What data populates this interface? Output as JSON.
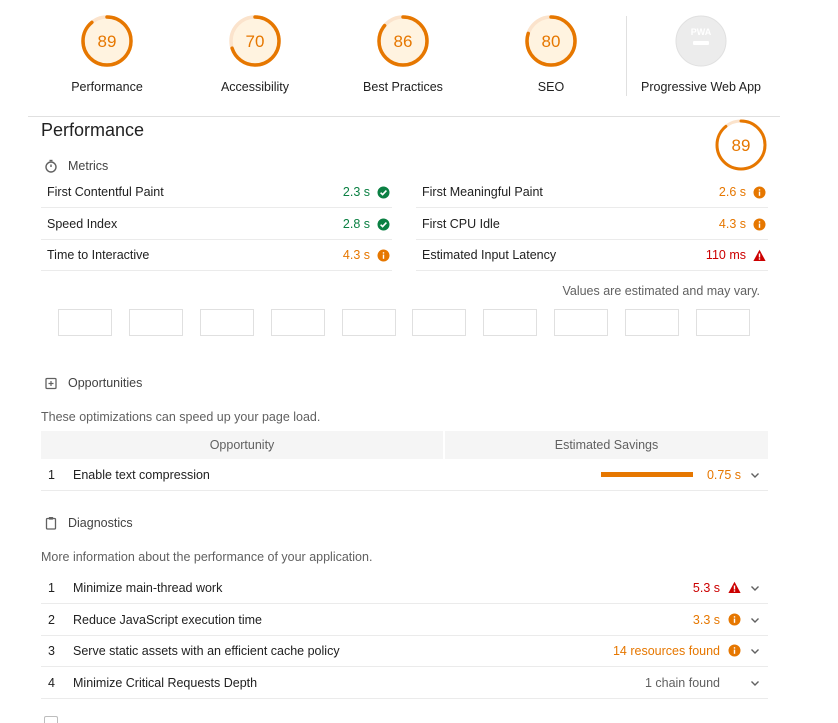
{
  "top_gauges": [
    {
      "score": "89",
      "label": "Performance",
      "fraction": 0.89
    },
    {
      "score": "70",
      "label": "Accessibility",
      "fraction": 0.7
    },
    {
      "score": "86",
      "label": "Best Practices",
      "fraction": 0.86
    },
    {
      "score": "80",
      "label": "SEO",
      "fraction": 0.8
    }
  ],
  "pwa": {
    "badge": "PWA",
    "label": "Progressive Web App"
  },
  "performance": {
    "title": "Performance",
    "score": "89",
    "score_fraction": 0.89
  },
  "metrics": {
    "header": "Metrics",
    "items": [
      {
        "label": "First Contentful Paint",
        "value": "2.3 s",
        "status": "pass"
      },
      {
        "label": "First Meaningful Paint",
        "value": "2.6 s",
        "status": "average"
      },
      {
        "label": "Speed Index",
        "value": "2.8 s",
        "status": "pass"
      },
      {
        "label": "First CPU Idle",
        "value": "4.3 s",
        "status": "average"
      },
      {
        "label": "Time to Interactive",
        "value": "4.3 s",
        "status": "average"
      },
      {
        "label": "Estimated Input Latency",
        "value": "110 ms",
        "status": "fail"
      }
    ],
    "note": "Values are estimated and may vary."
  },
  "opportunities": {
    "header": "Opportunities",
    "description": "These optimizations can speed up your page load.",
    "col_opportunity": "Opportunity",
    "col_savings": "Estimated Savings",
    "items": [
      {
        "num": "1",
        "title": "Enable text compression",
        "value": "0.75 s"
      }
    ]
  },
  "diagnostics": {
    "header": "Diagnostics",
    "description": "More information about the performance of your application.",
    "items": [
      {
        "num": "1",
        "title": "Minimize main-thread work",
        "value": "5.3 s",
        "status": "fail"
      },
      {
        "num": "2",
        "title": "Reduce JavaScript execution time",
        "value": "3.3 s",
        "status": "average"
      },
      {
        "num": "3",
        "title": "Serve static assets with an efficient cache policy",
        "value": "14 resources found",
        "status": "average"
      },
      {
        "num": "4",
        "title": "Minimize Critical Requests Depth",
        "value": "1 chain found",
        "status": "info"
      }
    ]
  },
  "colors": {
    "pass": "#0b8043",
    "average": "#e67700",
    "fail": "#cc0000",
    "info": "#616161"
  }
}
